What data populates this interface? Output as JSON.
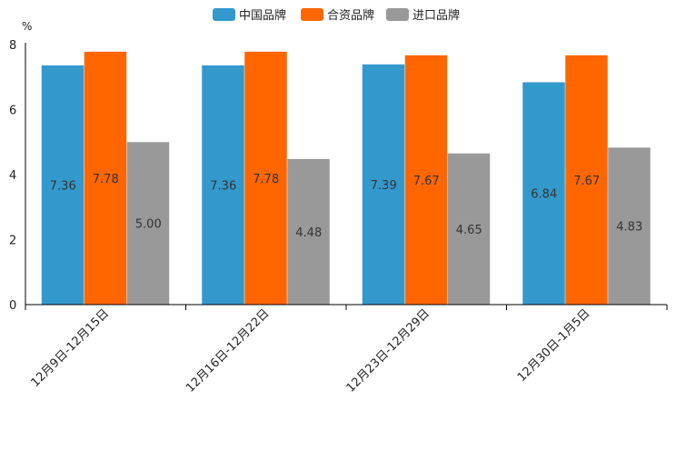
{
  "chart_data": {
    "type": "bar",
    "ylabel": "%",
    "ylim": [
      0,
      8
    ],
    "yticks": [
      "0",
      "2",
      "4",
      "6",
      "8"
    ],
    "categories": [
      "12月9日-12月15日",
      "12月16日-12月22日",
      "12月23日-12月29日",
      "12月30日-1月5日"
    ],
    "series": [
      {
        "name": "中国品牌",
        "color": "#3399cc",
        "values": [
          7.36,
          7.36,
          7.39,
          6.84
        ],
        "labels": [
          "7.36",
          "7.36",
          "7.39",
          "6.84"
        ]
      },
      {
        "name": "合资品牌",
        "color": "#ff6600",
        "values": [
          7.78,
          7.78,
          7.67,
          7.67
        ],
        "labels": [
          "7.78",
          "7.78",
          "7.67",
          "7.67"
        ]
      },
      {
        "name": "进口品牌",
        "color": "#999999",
        "values": [
          5.0,
          4.48,
          4.65,
          4.83
        ],
        "labels": [
          "5.00",
          "4.48",
          "4.65",
          "4.83"
        ]
      }
    ],
    "legend_position": "top-center",
    "grid": false
  }
}
